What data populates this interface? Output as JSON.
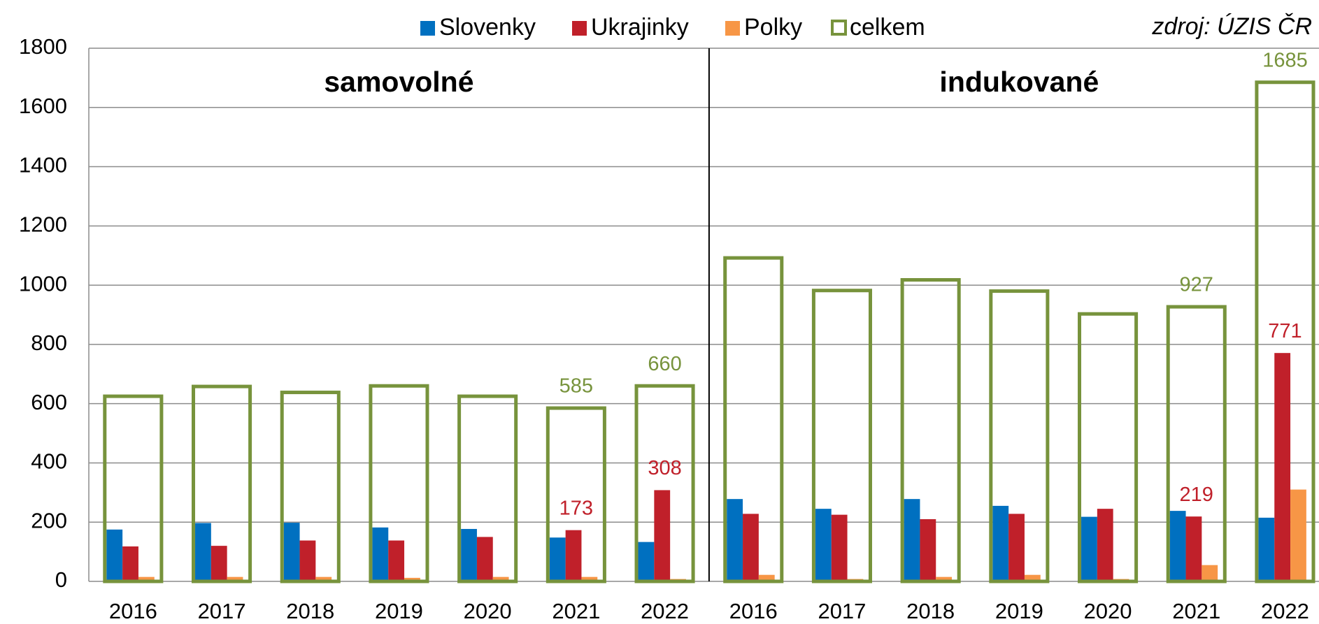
{
  "chart_data": {
    "type": "bar",
    "annotation": "zdroj: ÚZIS ČR",
    "groups": [
      {
        "name": "samovolné",
        "categories": [
          "2016",
          "2017",
          "2018",
          "2019",
          "2020",
          "2021",
          "2022"
        ]
      },
      {
        "name": "indukované",
        "categories": [
          "2016",
          "2017",
          "2018",
          "2019",
          "2020",
          "2021",
          "2022"
        ]
      }
    ],
    "series": [
      {
        "name": "Slovenky",
        "color": "#0070c0",
        "values": [
          175,
          197,
          198,
          182,
          177,
          148,
          133,
          278,
          245,
          278,
          255,
          218,
          238,
          215
        ]
      },
      {
        "name": "Ukrajinky",
        "color": "#c0202a",
        "values": [
          118,
          120,
          138,
          138,
          150,
          173,
          308,
          228,
          225,
          210,
          228,
          245,
          219,
          771
        ],
        "value_labels": [
          null,
          null,
          null,
          null,
          null,
          "173",
          "308",
          null,
          null,
          null,
          null,
          null,
          "219",
          "771"
        ]
      },
      {
        "name": "Polky",
        "color": "#f79646",
        "values": [
          15,
          15,
          15,
          12,
          15,
          15,
          8,
          22,
          8,
          15,
          22,
          8,
          55,
          310
        ]
      },
      {
        "name": "celkem",
        "color": "#77933c",
        "outline": true,
        "values": [
          625,
          658,
          638,
          660,
          625,
          585,
          660,
          1092,
          982,
          1018,
          980,
          903,
          927,
          1685
        ],
        "value_labels": [
          null,
          null,
          null,
          null,
          null,
          "585",
          "660",
          null,
          null,
          null,
          null,
          null,
          "927",
          "1685"
        ]
      }
    ],
    "ylim": [
      0,
      1800
    ],
    "yticks": [
      0,
      200,
      400,
      600,
      800,
      1000,
      1200,
      1400,
      1600,
      1800
    ],
    "grid": true
  }
}
